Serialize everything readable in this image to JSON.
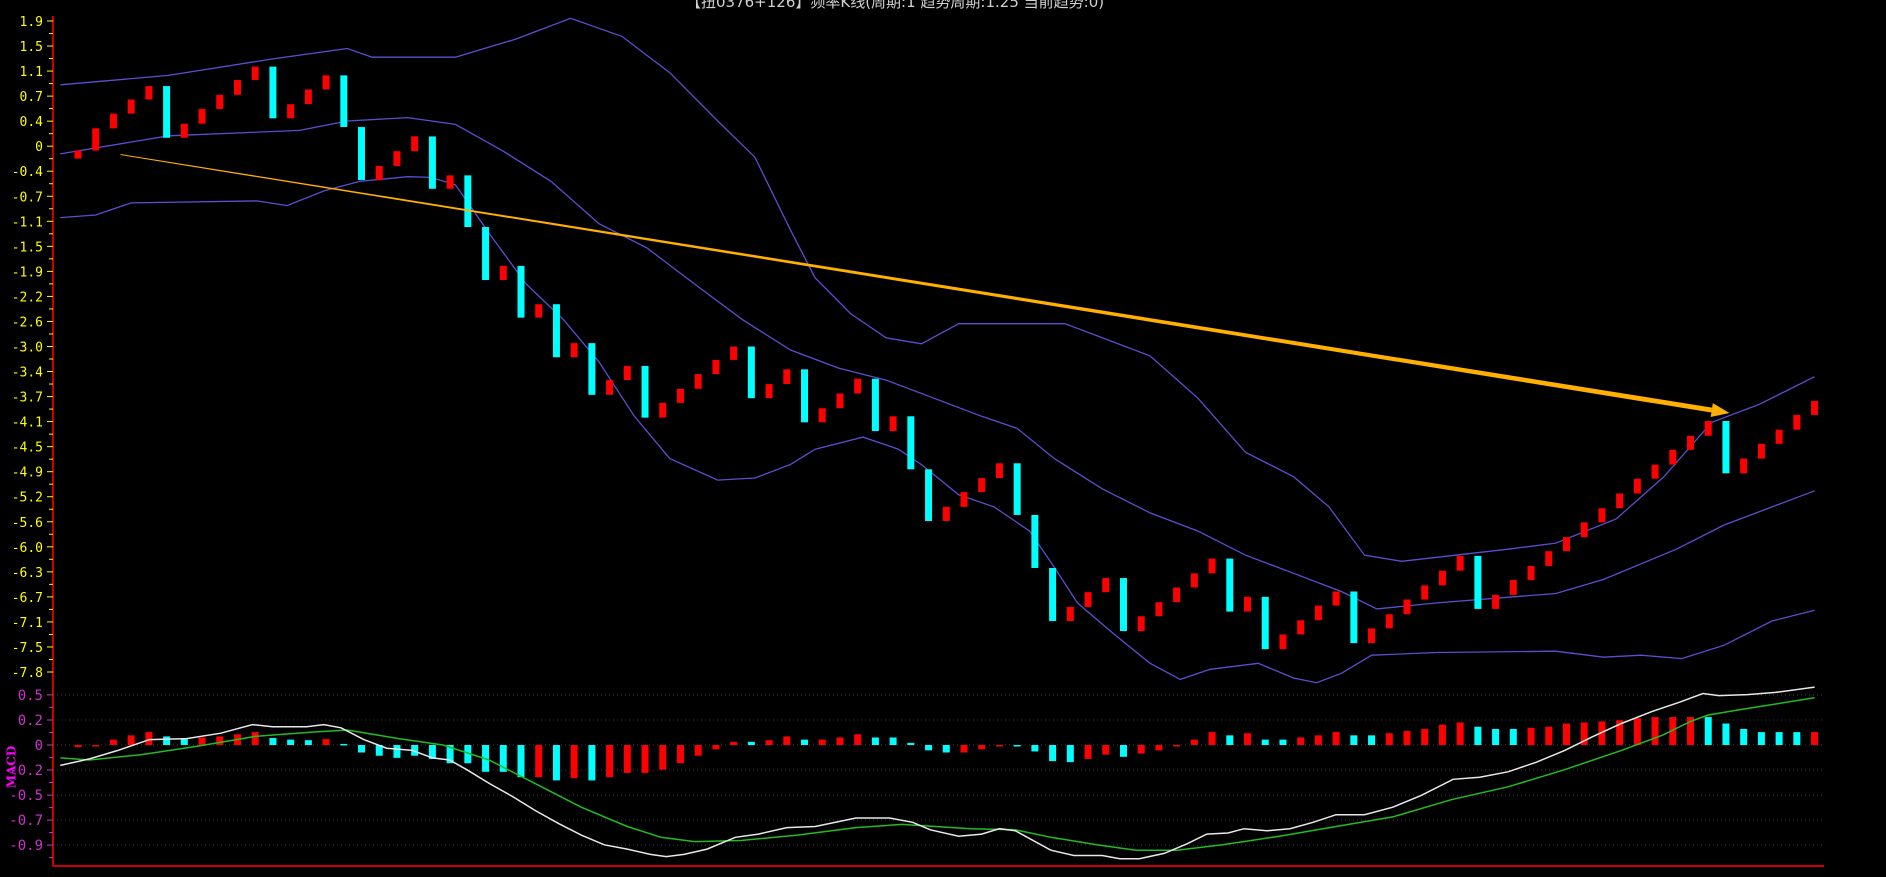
{
  "title": "【扭0376+126】频率K线(周期:1 趋势周期:1.25 当前趋势:0)",
  "colors": {
    "up": "#ff0000",
    "down": "#00ffff",
    "band": "#5a4fd0",
    "axis": "#cc0000",
    "price_label": "#ffff00",
    "macd_label": "#cc33cc",
    "dif": "#e8e8e8",
    "dea": "#22bb22",
    "trend": "#ffb000"
  },
  "chart_data": [
    {
      "type": "candlestick",
      "name": "price",
      "y_tick_labels": [
        "1.9",
        "1.5",
        "1.1",
        "0.7",
        "0.4",
        "0",
        "-0.4",
        "-0.7",
        "-1.1",
        "-1.5",
        "-1.9",
        "-2.2",
        "-2.6",
        "-3.0",
        "-3.4",
        "-3.7",
        "-4.1",
        "-4.5",
        "-4.9",
        "-5.2",
        "-5.6",
        "-6.0",
        "-6.3",
        "-6.7",
        "-7.1",
        "-7.5",
        "-7.8"
      ],
      "ylim": [
        -7.8,
        1.9
      ],
      "first_open": -0.15,
      "closes": [
        -0.03,
        0.3,
        0.52,
        0.73,
        0.93,
        0.16,
        0.37,
        0.59,
        0.8,
        1.02,
        1.22,
        0.45,
        0.66,
        0.88,
        1.09,
        0.32,
        -0.47,
        -0.26,
        -0.04,
        0.18,
        -0.6,
        -0.4,
        -1.17,
        -1.96,
        -1.75,
        -2.52,
        -2.32,
        -3.11,
        -2.9,
        -3.67,
        -3.45,
        -3.24,
        -4.01,
        -3.79,
        -3.58,
        -3.36,
        -3.15,
        -2.95,
        -3.72,
        -3.51,
        -3.29,
        -4.08,
        -3.87,
        -3.65,
        -3.43,
        -4.21,
        -3.99,
        -4.78,
        -5.55,
        -5.34,
        -5.12,
        -4.91,
        -4.69,
        -5.46,
        -6.25,
        -7.04,
        -6.83,
        -6.61,
        -6.4,
        -7.19,
        -6.97,
        -6.76,
        -6.54,
        -6.33,
        -6.11,
        -6.9,
        -6.68,
        -7.46,
        -7.24,
        -7.03,
        -6.81,
        -6.6,
        -7.37,
        -7.15,
        -6.94,
        -6.72,
        -6.51,
        -6.29,
        -6.07,
        -6.86,
        -6.65,
        -6.43,
        -6.22,
        -6.0,
        -5.79,
        -5.57,
        -5.36,
        -5.14,
        -4.92,
        -4.71,
        -4.49,
        -4.28,
        -4.06,
        -4.84,
        -4.62,
        -4.4,
        -4.19,
        -3.97,
        -3.76
      ],
      "bands": {
        "upper": [
          [
            -1,
            0.95
          ],
          [
            5.1,
            1.09
          ],
          [
            11.1,
            1.34
          ],
          [
            15.2,
            1.49
          ],
          [
            16.6,
            1.36
          ],
          [
            21.3,
            1.36
          ],
          [
            24.7,
            1.63
          ],
          [
            27.8,
            1.94
          ],
          [
            30.7,
            1.67
          ],
          [
            33.4,
            1.13
          ],
          [
            36.1,
            0.41
          ],
          [
            38.2,
            -0.13
          ],
          [
            40.2,
            -1.21
          ],
          [
            41.6,
            -1.93
          ],
          [
            43.6,
            -2.46
          ],
          [
            45.6,
            -2.82
          ],
          [
            47.6,
            -2.91
          ],
          [
            49.7,
            -2.61
          ],
          [
            55.7,
            -2.61
          ],
          [
            60.5,
            -3.09
          ],
          [
            63.2,
            -3.72
          ],
          [
            65.9,
            -4.53
          ],
          [
            68.6,
            -4.89
          ],
          [
            70.6,
            -5.34
          ],
          [
            72.6,
            -6.06
          ],
          [
            74.7,
            -6.15
          ],
          [
            80.7,
            -5.97
          ],
          [
            83.4,
            -5.88
          ],
          [
            86.8,
            -5.52
          ],
          [
            89.5,
            -4.89
          ],
          [
            92.2,
            -4.08
          ],
          [
            94.9,
            -3.81
          ],
          [
            98,
            -3.4
          ]
        ],
        "middle": [
          [
            -1,
            -0.08
          ],
          [
            5.1,
            0.19
          ],
          [
            12.5,
            0.27
          ],
          [
            15.2,
            0.41
          ],
          [
            18.6,
            0.46
          ],
          [
            21.3,
            0.36
          ],
          [
            24.0,
            -0.04
          ],
          [
            26.7,
            -0.49
          ],
          [
            29.4,
            -1.12
          ],
          [
            32.1,
            -1.48
          ],
          [
            34.8,
            -2.02
          ],
          [
            37.5,
            -2.55
          ],
          [
            40.2,
            -3.0
          ],
          [
            42.9,
            -3.27
          ],
          [
            45.6,
            -3.45
          ],
          [
            48.3,
            -3.72
          ],
          [
            51.0,
            -3.99
          ],
          [
            53.0,
            -4.17
          ],
          [
            55.1,
            -4.62
          ],
          [
            57.8,
            -5.07
          ],
          [
            60.5,
            -5.43
          ],
          [
            63.2,
            -5.7
          ],
          [
            65.9,
            -6.06
          ],
          [
            68.6,
            -6.33
          ],
          [
            71.3,
            -6.6
          ],
          [
            73.3,
            -6.86
          ],
          [
            76.7,
            -6.77
          ],
          [
            83.4,
            -6.63
          ],
          [
            86.1,
            -6.42
          ],
          [
            90.2,
            -5.97
          ],
          [
            92.9,
            -5.61
          ],
          [
            95.6,
            -5.34
          ],
          [
            98,
            -5.1
          ]
        ],
        "lower": [
          [
            -1,
            -1.03
          ],
          [
            1.0,
            -0.99
          ],
          [
            3.0,
            -0.81
          ],
          [
            10.1,
            -0.78
          ],
          [
            11.8,
            -0.85
          ],
          [
            13.9,
            -0.63
          ],
          [
            15.9,
            -0.49
          ],
          [
            18.6,
            -0.42
          ],
          [
            19.9,
            -0.43
          ],
          [
            21.3,
            -0.54
          ],
          [
            23.3,
            -1.3
          ],
          [
            25.3,
            -2.02
          ],
          [
            27.4,
            -2.55
          ],
          [
            29.4,
            -3.18
          ],
          [
            31.4,
            -3.99
          ],
          [
            33.4,
            -4.62
          ],
          [
            36.1,
            -4.94
          ],
          [
            38.2,
            -4.91
          ],
          [
            40.2,
            -4.71
          ],
          [
            41.6,
            -4.48
          ],
          [
            44.3,
            -4.3
          ],
          [
            46.3,
            -4.48
          ],
          [
            47.6,
            -4.71
          ],
          [
            49.7,
            -5.16
          ],
          [
            51.7,
            -5.34
          ],
          [
            53.7,
            -5.7
          ],
          [
            55.1,
            -6.24
          ],
          [
            56.4,
            -6.77
          ],
          [
            58.4,
            -7.22
          ],
          [
            60.5,
            -7.67
          ],
          [
            62.2,
            -7.91
          ],
          [
            63.9,
            -7.76
          ],
          [
            66.6,
            -7.67
          ],
          [
            68.6,
            -7.89
          ],
          [
            69.9,
            -7.96
          ],
          [
            71.3,
            -7.82
          ],
          [
            73.0,
            -7.55
          ],
          [
            76.7,
            -7.51
          ],
          [
            83.4,
            -7.49
          ],
          [
            86.1,
            -7.58
          ],
          [
            88.2,
            -7.55
          ],
          [
            90.5,
            -7.6
          ],
          [
            92.9,
            -7.4
          ],
          [
            95.6,
            -7.04
          ],
          [
            98,
            -6.88
          ]
        ]
      },
      "trend_arrow": {
        "from": [
          2.4,
          -0.09
        ],
        "to": [
          93.2,
          -3.94
        ]
      }
    },
    {
      "type": "macd",
      "name": "MACD",
      "label": "MACD",
      "y_tick_labels": [
        "0.5",
        "0.2",
        "0",
        "-0.2",
        "-0.5",
        "-0.7",
        "-0.9"
      ],
      "y_tick_values": [
        0.467,
        0.233,
        0,
        -0.233,
        -0.467,
        -0.7,
        -0.933
      ],
      "histogram": [
        -0.02,
        -0.005,
        0.05,
        0.09,
        0.12,
        0.08,
        0.06,
        0.07,
        0.08,
        0.1,
        0.12,
        0.065,
        0.05,
        0.045,
        0.055,
        0.01,
        -0.07,
        -0.1,
        -0.12,
        -0.1,
        -0.13,
        -0.17,
        -0.17,
        -0.25,
        -0.25,
        -0.3,
        -0.3,
        -0.33,
        -0.31,
        -0.33,
        -0.3,
        -0.26,
        -0.26,
        -0.23,
        -0.17,
        -0.1,
        -0.04,
        0.03,
        0.03,
        0.045,
        0.08,
        0.05,
        0.05,
        0.07,
        0.1,
        0.07,
        0.07,
        0.02,
        -0.05,
        -0.07,
        -0.07,
        -0.04,
        -0.005,
        -0.01,
        -0.06,
        -0.15,
        -0.16,
        -0.13,
        -0.09,
        -0.11,
        -0.08,
        -0.05,
        -0.005,
        0.05,
        0.12,
        0.09,
        0.11,
        0.05,
        0.05,
        0.07,
        0.09,
        0.12,
        0.09,
        0.09,
        0.11,
        0.13,
        0.15,
        0.19,
        0.21,
        0.17,
        0.15,
        0.15,
        0.16,
        0.17,
        0.2,
        0.21,
        0.22,
        0.23,
        0.25,
        0.26,
        0.26,
        0.26,
        0.26,
        0.2,
        0.15,
        0.12,
        0.12,
        0.12,
        0.12
      ],
      "histogram_colors": "rrrrrccrrrrcccrcccccccccccrcrcrrrrrrrrcrrcrrrcccccrrrccccrrcrrrrrcrccrrrccrrrrrcccrrrrrrrrrrccccccr",
      "dif": [
        [
          -1,
          -0.19
        ],
        [
          0.65,
          -0.13
        ],
        [
          2.26,
          -0.05
        ],
        [
          4.03,
          0.05
        ],
        [
          6.13,
          0.06
        ],
        [
          8.06,
          0.11
        ],
        [
          9.84,
          0.19
        ],
        [
          10.97,
          0.17
        ],
        [
          12.9,
          0.17
        ],
        [
          13.87,
          0.19
        ],
        [
          14.84,
          0.16
        ],
        [
          16.13,
          0.05
        ],
        [
          17.42,
          -0.03
        ],
        [
          18.87,
          -0.05
        ],
        [
          20.0,
          -0.12
        ],
        [
          20.97,
          -0.14
        ],
        [
          21.94,
          -0.23
        ],
        [
          23.23,
          -0.36
        ],
        [
          24.52,
          -0.48
        ],
        [
          25.8,
          -0.61
        ],
        [
          27.1,
          -0.73
        ],
        [
          28.4,
          -0.84
        ],
        [
          29.7,
          -0.93
        ],
        [
          31.0,
          -0.97
        ],
        [
          32.3,
          -1.02
        ],
        [
          33.2,
          -1.04
        ],
        [
          34.2,
          -1.02
        ],
        [
          35.5,
          -0.97
        ],
        [
          37.1,
          -0.86
        ],
        [
          38.4,
          -0.83
        ],
        [
          40.0,
          -0.77
        ],
        [
          41.6,
          -0.76
        ],
        [
          43.9,
          -0.68
        ],
        [
          45.8,
          -0.68
        ],
        [
          47.1,
          -0.72
        ],
        [
          48.1,
          -0.79
        ],
        [
          49.7,
          -0.85
        ],
        [
          51.0,
          -0.83
        ],
        [
          52.0,
          -0.78
        ],
        [
          52.9,
          -0.8
        ],
        [
          54.9,
          -0.98
        ],
        [
          56.2,
          -1.03
        ],
        [
          57.8,
          -1.03
        ],
        [
          58.8,
          -1.06
        ],
        [
          59.9,
          -1.06
        ],
        [
          61.3,
          -1.01
        ],
        [
          62.6,
          -0.92
        ],
        [
          63.7,
          -0.83
        ],
        [
          64.9,
          -0.82
        ],
        [
          65.8,
          -0.78
        ],
        [
          67.1,
          -0.8
        ],
        [
          68.4,
          -0.78
        ],
        [
          69.7,
          -0.72
        ],
        [
          71.0,
          -0.65
        ],
        [
          72.6,
          -0.65
        ],
        [
          74.2,
          -0.58
        ],
        [
          75.8,
          -0.47
        ],
        [
          77.6,
          -0.32
        ],
        [
          79.1,
          -0.3
        ],
        [
          80.7,
          -0.25
        ],
        [
          82.3,
          -0.16
        ],
        [
          83.9,
          -0.05
        ],
        [
          85.5,
          0.08
        ],
        [
          87.1,
          0.2
        ],
        [
          88.8,
          0.31
        ],
        [
          90.4,
          0.4
        ],
        [
          91.7,
          0.48
        ],
        [
          92.6,
          0.46
        ],
        [
          94.2,
          0.47
        ],
        [
          95.8,
          0.49
        ],
        [
          98,
          0.54
        ]
      ],
      "dea": [
        [
          -1,
          -0.12
        ],
        [
          0.65,
          -0.14
        ],
        [
          3.55,
          -0.09
        ],
        [
          6.77,
          -0.01
        ],
        [
          10.0,
          0.08
        ],
        [
          13.2,
          0.12
        ],
        [
          15.2,
          0.14
        ],
        [
          18.1,
          0.06
        ],
        [
          20.6,
          0.0
        ],
        [
          23.2,
          -0.14
        ],
        [
          25.8,
          -0.36
        ],
        [
          28.4,
          -0.58
        ],
        [
          31.0,
          -0.76
        ],
        [
          32.9,
          -0.86
        ],
        [
          34.8,
          -0.9
        ],
        [
          37.4,
          -0.89
        ],
        [
          40.6,
          -0.84
        ],
        [
          43.9,
          -0.77
        ],
        [
          46.5,
          -0.74
        ],
        [
          48.4,
          -0.76
        ],
        [
          50.4,
          -0.78
        ],
        [
          52.9,
          -0.79
        ],
        [
          54.9,
          -0.86
        ],
        [
          57.5,
          -0.93
        ],
        [
          59.7,
          -0.98
        ],
        [
          62.0,
          -0.98
        ],
        [
          64.6,
          -0.93
        ],
        [
          67.8,
          -0.85
        ],
        [
          71.0,
          -0.76
        ],
        [
          74.2,
          -0.67
        ],
        [
          77.5,
          -0.51
        ],
        [
          80.7,
          -0.39
        ],
        [
          83.9,
          -0.23
        ],
        [
          87.1,
          -0.05
        ],
        [
          89.4,
          0.09
        ],
        [
          91.0,
          0.22
        ],
        [
          92.0,
          0.28
        ],
        [
          94.2,
          0.34
        ],
        [
          98,
          0.44
        ]
      ]
    }
  ]
}
